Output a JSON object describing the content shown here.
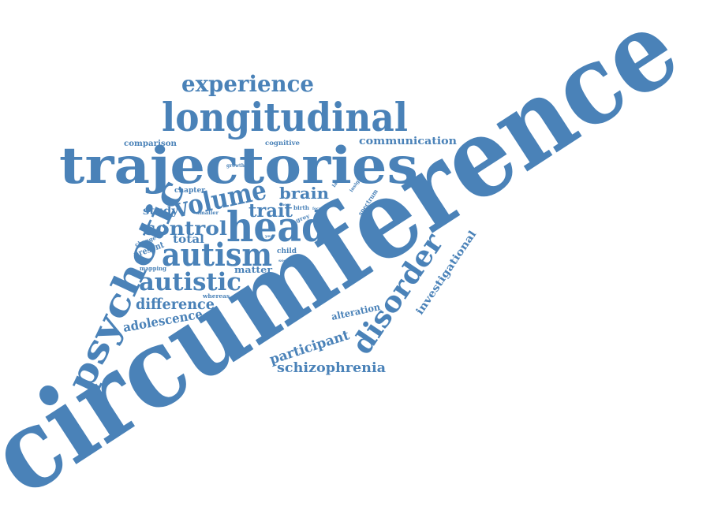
{
  "words": {
    "circumference": "circumference",
    "trajectories": "trajectories",
    "longitudinal": "longitudinal",
    "psychotic": "psychotic",
    "head": "head",
    "autism": "autism",
    "disorder": "disorder",
    "experience": "experience",
    "volume": "volume",
    "autistic": "autistic",
    "control": "control",
    "trait": "trait",
    "brain": "brain",
    "difference": "difference",
    "schizophrenia": "schizophrenia",
    "participant": "participant",
    "adolescence": "adolescence",
    "communication": "communication",
    "investigational": "investigational",
    "alteration": "alteration",
    "comparison": "comparison",
    "cognitive": "cognitive",
    "study": "study",
    "total": "total",
    "present": "present",
    "matter": "matter",
    "spectrum": "spectrum",
    "growth": "growth",
    "chapter": "chapter",
    "mapping": "mapping",
    "child": "child",
    "whereas": "whereas",
    "smaller": "smaller",
    "change": "change",
    "birth": "birth",
    "grey": "grey",
    "more": "more",
    "year": "year",
    "social": "social",
    "larger": "larger",
    "insight": "insight",
    "focus": "focus"
  },
  "colors": {
    "word": "#4a82b8",
    "background": "#ffffff"
  }
}
